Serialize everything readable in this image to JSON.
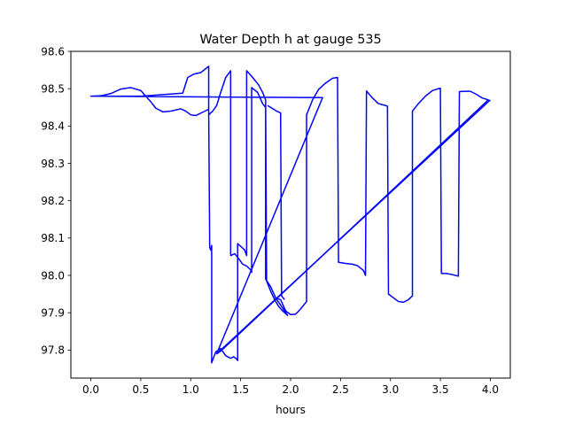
{
  "chart_data": {
    "type": "line",
    "title": "Water Depth h at gauge 535",
    "xlabel": "hours",
    "ylabel": "",
    "xlim": [
      -0.2,
      4.2
    ],
    "ylim": [
      97.725,
      98.6
    ],
    "xticks": [
      0.0,
      0.5,
      1.0,
      1.5,
      2.0,
      2.5,
      3.0,
      3.5,
      4.0
    ],
    "xtick_labels": [
      "0.0",
      "0.5",
      "1.0",
      "1.5",
      "2.0",
      "2.5",
      "3.0",
      "3.5",
      "4.0"
    ],
    "yticks": [
      97.8,
      97.9,
      98.0,
      98.1,
      98.2,
      98.3,
      98.4,
      98.5,
      98.6
    ],
    "ytick_labels": [
      "97.8",
      "97.9",
      "98.0",
      "98.1",
      "98.2",
      "98.3",
      "98.4",
      "98.5",
      "98.6"
    ],
    "grid": false,
    "series": [
      {
        "color": "#0000ff",
        "points": [
          [
            0.0,
            98.48
          ],
          [
            0.1,
            98.481
          ],
          [
            0.2,
            98.487
          ],
          [
            0.3,
            98.499
          ],
          [
            0.4,
            98.503
          ],
          [
            0.5,
            98.495
          ],
          [
            0.55,
            98.48
          ],
          [
            0.6,
            98.465
          ],
          [
            0.65,
            98.448
          ],
          [
            0.72,
            98.438
          ],
          [
            0.8,
            98.44
          ],
          [
            0.9,
            98.446
          ],
          [
            0.95,
            98.44
          ],
          [
            1.0,
            98.43
          ],
          [
            1.05,
            98.428
          ],
          [
            1.12,
            98.437
          ],
          [
            1.18,
            98.445
          ],
          [
            1.19,
            98.075
          ],
          [
            1.2,
            98.068
          ],
          [
            1.21,
            98.08
          ],
          [
            1.21,
            97.766
          ],
          [
            1.25,
            97.795
          ],
          [
            1.3,
            97.804
          ],
          [
            1.35,
            97.785
          ],
          [
            1.4,
            97.778
          ],
          [
            1.43,
            97.782
          ],
          [
            1.46,
            97.776
          ],
          [
            1.47,
            97.772
          ],
          [
            1.47,
            98.085
          ],
          [
            1.5,
            98.078
          ],
          [
            1.54,
            98.068
          ],
          [
            1.56,
            98.053
          ],
          [
            1.56,
            98.548
          ],
          [
            1.62,
            98.53
          ],
          [
            1.68,
            98.51
          ],
          [
            1.72,
            98.49
          ],
          [
            1.75,
            98.47
          ],
          [
            1.76,
            97.985
          ],
          [
            1.8,
            97.958
          ],
          [
            1.84,
            97.935
          ],
          [
            1.88,
            97.917
          ],
          [
            1.92,
            97.905
          ],
          [
            1.97,
            97.893
          ],
          [
            1.85,
            97.94
          ],
          [
            1.9,
            97.935
          ],
          [
            1.95,
            97.905
          ],
          [
            2.0,
            97.895
          ],
          [
            2.05,
            97.896
          ],
          [
            2.1,
            97.91
          ],
          [
            2.16,
            97.93
          ],
          [
            2.16,
            98.43
          ],
          [
            2.22,
            98.47
          ],
          [
            2.28,
            98.498
          ],
          [
            2.35,
            98.515
          ],
          [
            2.42,
            98.528
          ],
          [
            2.47,
            98.53
          ],
          [
            2.48,
            98.035
          ],
          [
            2.55,
            98.032
          ],
          [
            2.62,
            98.03
          ],
          [
            2.67,
            98.026
          ],
          [
            2.73,
            98.013
          ],
          [
            2.75,
            98.0
          ],
          [
            2.76,
            98.494
          ],
          [
            2.82,
            98.475
          ],
          [
            2.88,
            98.46
          ],
          [
            2.95,
            98.455
          ],
          [
            2.97,
            98.453
          ],
          [
            2.98,
            97.95
          ],
          [
            3.03,
            97.94
          ],
          [
            3.08,
            97.93
          ],
          [
            3.13,
            97.928
          ],
          [
            3.18,
            97.935
          ],
          [
            3.22,
            97.945
          ],
          [
            3.22,
            98.44
          ],
          [
            3.28,
            98.46
          ],
          [
            3.35,
            98.48
          ],
          [
            3.42,
            98.495
          ],
          [
            3.48,
            98.5
          ],
          [
            3.5,
            98.501
          ],
          [
            3.51,
            98.005
          ],
          [
            3.56,
            98.005
          ],
          [
            3.62,
            98.002
          ],
          [
            3.68,
            97.998
          ],
          [
            3.69,
            98.492
          ],
          [
            3.75,
            98.493
          ],
          [
            3.8,
            98.493
          ],
          [
            3.86,
            98.485
          ],
          [
            3.92,
            98.475
          ],
          [
            3.98,
            98.47
          ],
          [
            1.3,
            97.797
          ],
          [
            1.26,
            97.79
          ],
          [
            2.32,
            98.476
          ],
          [
            0.0,
            98.48
          ],
          [
            0.0,
            98.48
          ],
          [
            0.5,
            98.48
          ],
          [
            0.92,
            98.488
          ],
          [
            0.97,
            98.53
          ],
          [
            1.03,
            98.539
          ],
          [
            1.1,
            98.543
          ],
          [
            1.18,
            98.56
          ],
          [
            1.18,
            98.43
          ],
          [
            1.22,
            98.44
          ],
          [
            1.26,
            98.455
          ],
          [
            1.3,
            98.49
          ],
          [
            1.35,
            98.53
          ],
          [
            1.4,
            98.548
          ],
          [
            1.4,
            98.053
          ],
          [
            1.44,
            98.058
          ],
          [
            1.48,
            98.045
          ],
          [
            1.52,
            98.03
          ],
          [
            1.56,
            98.025
          ],
          [
            1.6,
            98.015
          ],
          [
            1.61,
            98.008
          ],
          [
            1.61,
            98.503
          ],
          [
            1.67,
            98.49
          ],
          [
            1.72,
            98.46
          ],
          [
            1.75,
            98.45
          ],
          [
            1.75,
            97.99
          ],
          [
            1.8,
            97.97
          ],
          [
            1.85,
            97.94
          ]
        ]
      },
      {
        "color": "#0000ff",
        "points": [
          [
            1.77,
            98.455
          ],
          [
            1.8,
            98.45
          ],
          [
            1.86,
            98.44
          ],
          [
            1.9,
            98.435
          ],
          [
            1.91,
            97.945
          ],
          [
            1.94,
            97.935
          ]
        ]
      },
      {
        "color": "#0000ff",
        "points": [
          [
            1.26,
            97.79
          ],
          [
            4.0,
            98.47
          ]
        ]
      }
    ]
  }
}
